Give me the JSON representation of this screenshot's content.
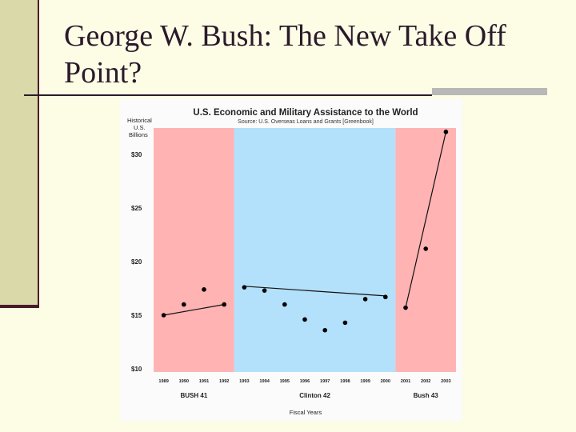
{
  "slide": {
    "title": "George W. Bush: The New Take Off Point?"
  },
  "chart_data": {
    "type": "scatter",
    "title": "U.S. Economic and Military Assistance to the World",
    "subtitle": "Source: U.S. Overseas Loans and Grants [Greenbook]",
    "ylabel": "Historical U.S. Billions",
    "xlabel": "Fiscal Years",
    "ylim": [
      10,
      33
    ],
    "yticks": [
      "$10",
      "$15",
      "$20",
      "$25",
      "$30"
    ],
    "ytick_values": [
      10,
      15,
      20,
      25,
      30
    ],
    "x": [
      1989,
      1990,
      1991,
      1992,
      1993,
      1994,
      1995,
      1996,
      1997,
      1998,
      1999,
      2000,
      2001,
      2002,
      2003
    ],
    "xtick_labels": [
      "1989",
      "1990",
      "1991",
      "1992",
      "1993",
      "1994",
      "1995",
      "1996",
      "1997",
      "1998",
      "1999",
      "2000",
      "2001",
      "2002",
      "2003"
    ],
    "values": [
      15.0,
      16.0,
      17.4,
      16.0,
      17.6,
      17.3,
      16.0,
      14.6,
      13.6,
      14.3,
      16.5,
      16.7,
      15.7,
      21.2,
      32.1
    ],
    "eras": [
      {
        "label": "BUSH 41",
        "start": 1989,
        "end": 1992,
        "color": "#ffb3b3"
      },
      {
        "label": "Clinton 42",
        "start": 1993,
        "end": 2000,
        "color": "#b3e0fa"
      },
      {
        "label": "Bush 43",
        "start": 2001,
        "end": 2003,
        "color": "#ffb3b3"
      }
    ],
    "trendlines": [
      {
        "from": [
          1989,
          15.0
        ],
        "to": [
          1992,
          16.0
        ]
      },
      {
        "from": [
          1993,
          17.7
        ],
        "to": [
          2000,
          16.8
        ]
      },
      {
        "from": [
          2001,
          15.7
        ],
        "to": [
          2003,
          32.1
        ]
      }
    ],
    "grid": false,
    "legend": "none"
  }
}
